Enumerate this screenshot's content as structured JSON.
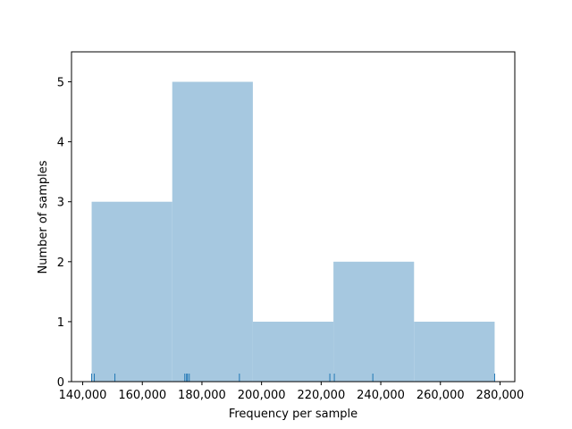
{
  "chart_data": {
    "type": "histogram",
    "xlabel": "Frequency per sample",
    "ylabel": "Number of samples",
    "bins": [
      143000,
      170040,
      197080,
      224120,
      251160,
      278200
    ],
    "counts": [
      3,
      5,
      1,
      2,
      1
    ],
    "color": "#a6c8e0",
    "rug": [
      143000,
      143900,
      150800,
      174250,
      174850,
      175150,
      175750,
      192570,
      222910,
      224410,
      237330,
      278200
    ],
    "rug_color": "#1f77b4",
    "xlim": [
      136240,
      284960
    ],
    "ylim": [
      0,
      5.5
    ],
    "xticks": [
      {
        "value": 140000,
        "label": "140,000"
      },
      {
        "value": 160000,
        "label": "160,000"
      },
      {
        "value": 180000,
        "label": "180,000"
      },
      {
        "value": 200000,
        "label": "200,000"
      },
      {
        "value": 220000,
        "label": "220,000"
      },
      {
        "value": 240000,
        "label": "240,000"
      },
      {
        "value": 260000,
        "label": "260,000"
      },
      {
        "value": 280000,
        "label": "280,000"
      }
    ],
    "yticks": [
      0,
      1,
      2,
      3,
      4,
      5
    ]
  }
}
